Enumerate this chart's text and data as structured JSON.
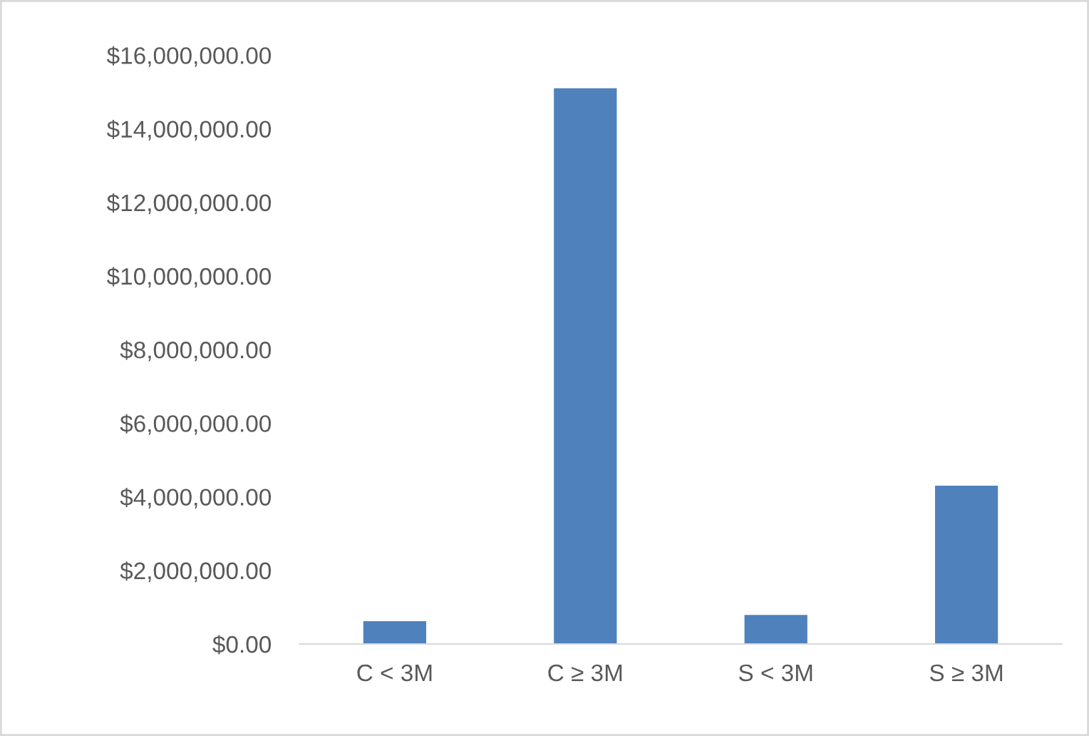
{
  "chart_data": {
    "type": "bar",
    "categories": [
      "C < 3M",
      "C ≥ 3M",
      "S < 3M",
      "S ≥ 3M"
    ],
    "values": [
      620000,
      15100000,
      790000,
      4300000
    ],
    "color": "#4f81bd",
    "ylim": [
      0,
      16000000
    ],
    "yticks": [
      {
        "value": 0,
        "label": "$0.00"
      },
      {
        "value": 2000000,
        "label": "$2,000,000.00"
      },
      {
        "value": 4000000,
        "label": "$4,000,000.00"
      },
      {
        "value": 6000000,
        "label": "$6,000,000.00"
      },
      {
        "value": 8000000,
        "label": "$8,000,000.00"
      },
      {
        "value": 10000000,
        "label": "$10,000,000.00"
      },
      {
        "value": 12000000,
        "label": "$12,000,000.00"
      },
      {
        "value": 14000000,
        "label": "$14,000,000.00"
      },
      {
        "value": 16000000,
        "label": "$16,000,000.00"
      }
    ],
    "grid": false
  }
}
